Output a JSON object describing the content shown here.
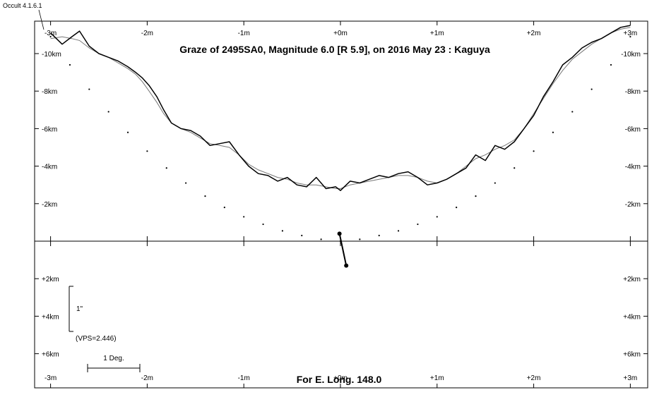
{
  "app_label": "Occult 4.1.6.1",
  "chart_data": {
    "type": "line",
    "title": "Graze of  2495SA0,  Magnitude 6.0 [R 5.9],  on 2016 May 23  :  Kaguya",
    "footer": "For E. Long. 148.0",
    "x_unit": "m",
    "y_unit": "km",
    "xlim": [
      -3.1,
      3.1
    ],
    "ylim": [
      -11.2,
      7.5
    ],
    "grid": false,
    "x_ticks": [
      {
        "value": -3,
        "label": "-3m"
      },
      {
        "value": -2,
        "label": "-2m"
      },
      {
        "value": -1,
        "label": "-1m"
      },
      {
        "value": 0,
        "label": "+0m"
      },
      {
        "value": 1,
        "label": "+1m"
      },
      {
        "value": 2,
        "label": "+2m"
      },
      {
        "value": 3,
        "label": "+3m"
      }
    ],
    "y_ticks": [
      {
        "value": -10,
        "label": "-10km"
      },
      {
        "value": -8,
        "label": "-8km"
      },
      {
        "value": -6,
        "label": "-6km"
      },
      {
        "value": -4,
        "label": "-4km"
      },
      {
        "value": -2,
        "label": "-2km"
      },
      {
        "value": 2,
        "label": "+2km"
      },
      {
        "value": 4,
        "label": "+4km"
      },
      {
        "value": 6,
        "label": "+6km"
      }
    ],
    "limb_profile": {
      "x": [
        -3.0,
        -2.88,
        -2.78,
        -2.7,
        -2.6,
        -2.5,
        -2.4,
        -2.3,
        -2.2,
        -2.12,
        -2.05,
        -1.98,
        -1.9,
        -1.83,
        -1.75,
        -1.65,
        -1.55,
        -1.45,
        -1.35,
        -1.25,
        -1.15,
        -1.05,
        -0.95,
        -0.85,
        -0.75,
        -0.65,
        -0.55,
        -0.45,
        -0.35,
        -0.25,
        -0.15,
        -0.05,
        0.0,
        0.1,
        0.2,
        0.3,
        0.4,
        0.5,
        0.6,
        0.7,
        0.8,
        0.9,
        1.0,
        1.1,
        1.2,
        1.3,
        1.4,
        1.5,
        1.6,
        1.7,
        1.8,
        1.9,
        2.0,
        2.1,
        2.2,
        2.3,
        2.4,
        2.5,
        2.6,
        2.7,
        2.8,
        2.9,
        3.0
      ],
      "y": [
        -11.1,
        -10.5,
        -10.9,
        -11.2,
        -10.4,
        -10.0,
        -9.8,
        -9.6,
        -9.3,
        -9.0,
        -8.7,
        -8.3,
        -7.7,
        -7.0,
        -6.3,
        -6.0,
        -5.9,
        -5.6,
        -5.1,
        -5.2,
        -5.3,
        -4.6,
        -4.0,
        -3.6,
        -3.5,
        -3.2,
        -3.4,
        -3.0,
        -2.9,
        -3.4,
        -2.8,
        -2.9,
        -2.7,
        -3.2,
        -3.1,
        -3.3,
        -3.5,
        -3.4,
        -3.6,
        -3.7,
        -3.4,
        -3.0,
        -3.1,
        -3.3,
        -3.6,
        -3.9,
        -4.6,
        -4.3,
        -5.1,
        -4.9,
        -5.3,
        -6.0,
        -6.7,
        -7.7,
        -8.5,
        -9.4,
        -9.8,
        -10.3,
        -10.6,
        -10.8,
        -11.1,
        -11.4,
        -11.5
      ],
      "smooth_y": [
        -10.8,
        -10.9,
        -10.8,
        -10.7,
        -10.3,
        -10.0,
        -9.8,
        -9.5,
        -9.2,
        -8.9,
        -8.5,
        -8.0,
        -7.4,
        -6.8,
        -6.3,
        -6.0,
        -5.8,
        -5.5,
        -5.2,
        -5.1,
        -5.0,
        -4.6,
        -4.1,
        -3.8,
        -3.6,
        -3.4,
        -3.3,
        -3.1,
        -3.0,
        -3.0,
        -2.9,
        -2.8,
        -2.8,
        -3.0,
        -3.1,
        -3.2,
        -3.3,
        -3.4,
        -3.5,
        -3.5,
        -3.4,
        -3.2,
        -3.1,
        -3.3,
        -3.6,
        -4.0,
        -4.4,
        -4.6,
        -4.9,
        -5.1,
        -5.4,
        -6.0,
        -6.8,
        -7.6,
        -8.4,
        -9.1,
        -9.7,
        -10.1,
        -10.5,
        -10.8,
        -11.1,
        -11.3,
        -11.4
      ]
    },
    "limit_dots": {
      "x": [
        -3.0,
        -2.8,
        -2.6,
        -2.4,
        -2.2,
        -2.0,
        -1.8,
        -1.6,
        -1.4,
        -1.2,
        -1.0,
        -0.8,
        -0.6,
        -0.4,
        -0.2,
        0.0,
        0.2,
        0.4,
        0.6,
        0.8,
        1.0,
        1.2,
        1.4,
        1.6,
        1.8,
        2.0,
        2.2,
        2.4,
        2.6,
        2.8,
        3.0
      ],
      "y": [
        -10.9,
        -9.4,
        -8.1,
        -6.9,
        -5.8,
        -4.8,
        -3.9,
        -3.1,
        -2.4,
        -1.8,
        -1.3,
        -0.9,
        -0.55,
        -0.3,
        -0.1,
        0.0,
        -0.1,
        -0.3,
        -0.55,
        -0.9,
        -1.3,
        -1.8,
        -2.4,
        -3.1,
        -3.9,
        -4.8,
        -5.8,
        -6.9,
        -8.1,
        -9.4,
        -10.9
      ]
    },
    "path_segment": {
      "x": [
        -0.01,
        0.06
      ],
      "y": [
        -0.4,
        1.3
      ]
    },
    "scale_bar_label": "1\"",
    "vps_label": "(VPS=2.446)",
    "deg_label": "1 Deg."
  }
}
